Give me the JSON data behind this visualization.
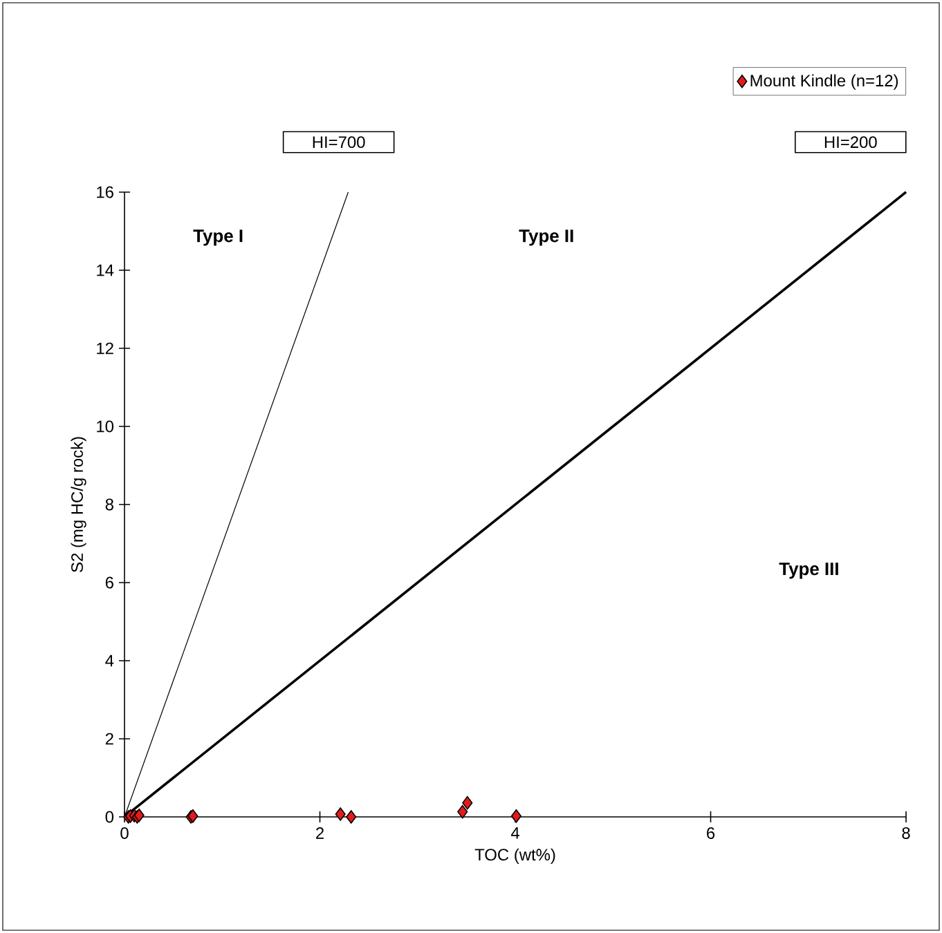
{
  "chart_data": {
    "type": "scatter",
    "xlabel": "TOC (wt%)",
    "ylabel": "S2 (mg HC/g rock)",
    "xlim": [
      0,
      8
    ],
    "ylim": [
      0,
      16
    ],
    "xticks": [
      0,
      2,
      4,
      6,
      8
    ],
    "yticks": [
      0,
      2,
      4,
      6,
      8,
      10,
      12,
      14,
      16
    ],
    "grid": false,
    "legend": "top right",
    "series": [
      {
        "name": "Mount Kindle (n=12)",
        "color": "#e41a1c",
        "marker": "diamond",
        "x": [
          0.04,
          0.06,
          0.1,
          0.13,
          0.15,
          0.68,
          0.7,
          2.21,
          2.32,
          3.46,
          3.51,
          4.01
        ],
        "values": [
          0.0,
          0.02,
          0.03,
          0.0,
          0.04,
          0.0,
          0.02,
          0.07,
          0.0,
          0.13,
          0.36,
          0.02
        ]
      },
      {
        "type": "line",
        "color": "#000000",
        "x": [
          0,
          2.29
        ],
        "values": [
          0,
          16
        ]
      },
      {
        "type": "line",
        "color": "#000000",
        "x": [
          0,
          8
        ],
        "values": [
          0,
          16
        ]
      }
    ],
    "annotations": [
      "HI=700",
      "HI=200",
      "Type I",
      "Type II",
      "Type III"
    ]
  }
}
